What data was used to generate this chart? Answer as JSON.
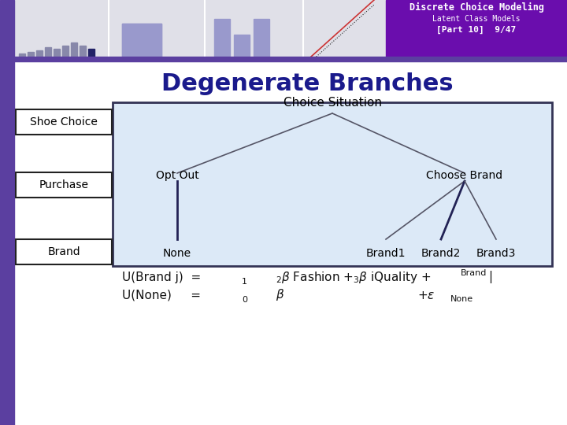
{
  "title": "Degenerate Branches",
  "title_color": "#1a1a8c",
  "title_fontsize": 22,
  "header_bg": "#6a0dad",
  "header_text_color": "white",
  "header_title": "Discrete Choice Modeling",
  "header_subtitle": "Latent Class Models",
  "header_part": "[Part 10]  9/47",
  "slide_bg": "white",
  "left_stripe_color": "#5b3fa0",
  "tree_bg": "#dce9f7",
  "tree_border": "#333355",
  "left_labels": [
    "Shoe Choice",
    "Purchase",
    "Brand"
  ],
  "tree_top_label": "Choice Situation",
  "tree_left_label": "Opt Out",
  "tree_right_label": "Choose Brand",
  "tree_bottom_labels": [
    "None",
    "Brand1",
    "Brand2",
    "Brand3"
  ],
  "formula_color": "#111111",
  "label_box_bg": "white",
  "label_box_border": "#222222"
}
